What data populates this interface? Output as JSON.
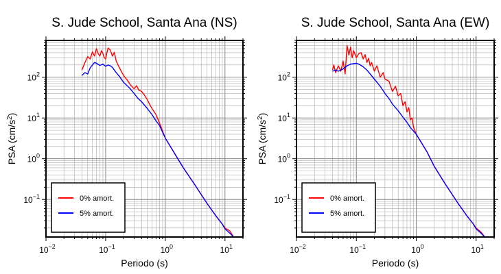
{
  "chart_data": [
    {
      "type": "line",
      "title": "S. Jude School, Santa Ana (NS)",
      "xlabel": "Periodo (s)",
      "ylabel_main": "PSA (cm/s",
      "ylabel_sup": "2",
      "ylabel_close": ")",
      "xscale": "log",
      "yscale": "log",
      "xlim": [
        0.01,
        20
      ],
      "ylim": [
        0.012,
        800
      ],
      "grid": true,
      "legend_position": "bottom-left",
      "x_ticks": [
        {
          "base": "10",
          "exp": "−2"
        },
        {
          "base": "10",
          "exp": "−1"
        },
        {
          "base": "10",
          "exp": "0"
        },
        {
          "base": "10",
          "exp": "1"
        }
      ],
      "y_ticks": [
        {
          "base": "10",
          "exp": "−1"
        },
        {
          "base": "10",
          "exp": "0"
        },
        {
          "base": "10",
          "exp": "1"
        },
        {
          "base": "10",
          "exp": "2"
        }
      ],
      "series": [
        {
          "name": "0% amort.",
          "color": "#ff0000",
          "x": [
            0.04,
            0.045,
            0.05,
            0.055,
            0.06,
            0.065,
            0.07,
            0.075,
            0.08,
            0.085,
            0.09,
            0.095,
            0.1,
            0.105,
            0.11,
            0.12,
            0.13,
            0.14,
            0.15,
            0.17,
            0.2,
            0.23,
            0.26,
            0.3,
            0.33,
            0.36,
            0.4,
            0.45,
            0.5,
            0.55,
            0.6,
            0.7,
            0.8,
            1.0,
            1.5,
            2,
            3,
            5,
            7,
            9,
            10,
            12,
            14
          ],
          "y": [
            150,
            230,
            320,
            280,
            420,
            330,
            500,
            380,
            330,
            450,
            380,
            300,
            280,
            400,
            520,
            460,
            330,
            410,
            250,
            170,
            110,
            85,
            65,
            52,
            62,
            48,
            45,
            36,
            28,
            21,
            17,
            12,
            7.5,
            3.2,
            1.2,
            0.6,
            0.25,
            0.08,
            0.04,
            0.025,
            0.02,
            0.017,
            0.012
          ]
        },
        {
          "name": "5% amort.",
          "color": "#0000ff",
          "x": [
            0.04,
            0.045,
            0.05,
            0.055,
            0.06,
            0.065,
            0.07,
            0.08,
            0.09,
            0.1,
            0.11,
            0.12,
            0.13,
            0.14,
            0.15,
            0.17,
            0.2,
            0.25,
            0.3,
            0.35,
            0.4,
            0.5,
            0.6,
            0.7,
            0.8,
            1.0,
            1.5,
            2,
            3,
            5,
            7,
            9,
            10,
            12,
            14
          ],
          "y": [
            110,
            130,
            120,
            170,
            200,
            230,
            220,
            195,
            210,
            185,
            200,
            190,
            175,
            150,
            130,
            105,
            75,
            55,
            40,
            30,
            25,
            17,
            12,
            8.5,
            6.5,
            3.2,
            1.2,
            0.6,
            0.25,
            0.08,
            0.04,
            0.025,
            0.019,
            0.015,
            0.012
          ]
        }
      ]
    },
    {
      "type": "line",
      "title": "S. Jude School, Santa Ana (EW)",
      "xlabel": "Periodo (s)",
      "ylabel_main": "PSA (cm/s",
      "ylabel_sup": "2",
      "ylabel_close": ")",
      "xscale": "log",
      "yscale": "log",
      "xlim": [
        0.01,
        20
      ],
      "ylim": [
        0.012,
        800
      ],
      "grid": true,
      "legend_position": "bottom-left",
      "x_ticks": [
        {
          "base": "10",
          "exp": "−2"
        },
        {
          "base": "10",
          "exp": "−1"
        },
        {
          "base": "10",
          "exp": "0"
        },
        {
          "base": "10",
          "exp": "1"
        }
      ],
      "y_ticks": [
        {
          "base": "10",
          "exp": "−1"
        },
        {
          "base": "10",
          "exp": "0"
        },
        {
          "base": "10",
          "exp": "1"
        },
        {
          "base": "10",
          "exp": "2"
        }
      ],
      "series": [
        {
          "name": "0% amort.",
          "color": "#ff0000",
          "x": [
            0.04,
            0.042,
            0.045,
            0.05,
            0.055,
            0.06,
            0.065,
            0.07,
            0.075,
            0.08,
            0.085,
            0.09,
            0.1,
            0.11,
            0.12,
            0.13,
            0.14,
            0.15,
            0.16,
            0.17,
            0.18,
            0.2,
            0.22,
            0.25,
            0.28,
            0.3,
            0.35,
            0.4,
            0.45,
            0.5,
            0.55,
            0.6,
            0.65,
            0.7,
            0.75,
            0.8,
            0.85,
            0.9,
            1.0,
            1.5,
            2,
            3,
            5,
            7,
            9,
            10,
            12,
            14
          ],
          "y": [
            150,
            200,
            130,
            190,
            140,
            250,
            120,
            600,
            350,
            550,
            300,
            450,
            300,
            380,
            400,
            280,
            360,
            230,
            290,
            190,
            230,
            140,
            190,
            100,
            130,
            90,
            80,
            45,
            60,
            35,
            40,
            20,
            25,
            14,
            18,
            9,
            10,
            6,
            4,
            1.5,
            0.65,
            0.25,
            0.08,
            0.04,
            0.025,
            0.02,
            0.016,
            0.012
          ]
        },
        {
          "name": "5% amort.",
          "color": "#0000ff",
          "x": [
            0.04,
            0.045,
            0.05,
            0.06,
            0.07,
            0.08,
            0.09,
            0.1,
            0.11,
            0.12,
            0.13,
            0.15,
            0.17,
            0.2,
            0.25,
            0.3,
            0.35,
            0.4,
            0.5,
            0.6,
            0.7,
            0.8,
            1.0,
            1.5,
            2,
            3,
            5,
            7,
            9,
            10,
            12,
            14
          ],
          "y": [
            140,
            150,
            140,
            160,
            190,
            210,
            215,
            220,
            210,
            195,
            180,
            150,
            120,
            90,
            60,
            40,
            30,
            22,
            15,
            10.5,
            7.8,
            5.8,
            4,
            1.5,
            0.65,
            0.25,
            0.08,
            0.04,
            0.025,
            0.019,
            0.015,
            0.012
          ]
        }
      ]
    }
  ]
}
